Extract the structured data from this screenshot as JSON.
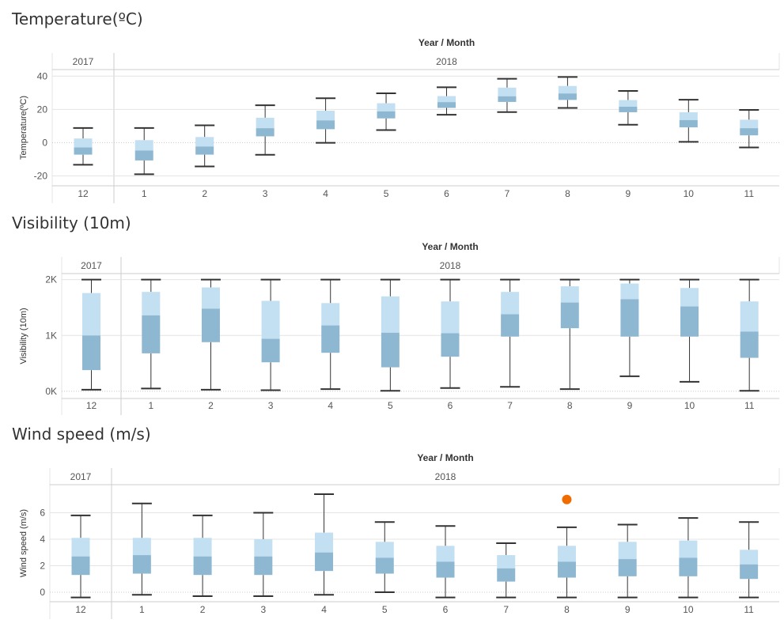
{
  "colors": {
    "upper_box": "#c3dff2",
    "lower_box": "#8eb8d2",
    "whisker": "#333333",
    "grid": "#e4e4e4",
    "outlier": "#f06c00",
    "header_text": "#555555"
  },
  "chart_data": [
    {
      "type": "box",
      "title": "Temperature(ºC)",
      "header": "Year / Month",
      "ylabel": "Temperature(ºC)",
      "years": [
        {
          "label": "2017",
          "span": 1
        },
        {
          "label": "2018",
          "span": 11
        }
      ],
      "categories": [
        "12",
        "1",
        "2",
        "3",
        "4",
        "5",
        "6",
        "7",
        "8",
        "9",
        "10",
        "11"
      ],
      "yticks": [
        {
          "v": -20,
          "label": "-20"
        },
        {
          "v": 0,
          "label": "0"
        },
        {
          "v": 20,
          "label": "20"
        },
        {
          "v": 40,
          "label": "40"
        }
      ],
      "ylim": [
        -25,
        43
      ],
      "boxes": [
        {
          "min": -13.3,
          "q1": -7.2,
          "median": -2.9,
          "q3": 2.5,
          "max": 8.8
        },
        {
          "min": -19.0,
          "q1": -10.7,
          "median": -4.7,
          "q3": 1.5,
          "max": 8.8
        },
        {
          "min": -14.3,
          "q1": -7.2,
          "median": -2.3,
          "q3": 3.4,
          "max": 10.4
        },
        {
          "min": -7.3,
          "q1": 3.8,
          "median": 8.7,
          "q3": 15.0,
          "max": 22.5
        },
        {
          "min": -0.1,
          "q1": 8.1,
          "median": 13.4,
          "q3": 19.2,
          "max": 26.7
        },
        {
          "min": 7.6,
          "q1": 14.6,
          "median": 18.8,
          "q3": 23.7,
          "max": 29.7
        },
        {
          "min": 16.8,
          "q1": 20.9,
          "median": 24.4,
          "q3": 28.0,
          "max": 33.3
        },
        {
          "min": 18.4,
          "q1": 24.5,
          "median": 27.9,
          "q3": 33.1,
          "max": 38.4
        },
        {
          "min": 20.9,
          "q1": 25.7,
          "median": 29.6,
          "q3": 34.1,
          "max": 39.5
        },
        {
          "min": 10.8,
          "q1": 18.3,
          "median": 21.6,
          "q3": 25.6,
          "max": 31.1
        },
        {
          "min": 0.5,
          "q1": 9.2,
          "median": 13.6,
          "q3": 18.3,
          "max": 25.8
        },
        {
          "min": -2.9,
          "q1": 4.4,
          "median": 8.7,
          "q3": 13.8,
          "max": 19.7
        }
      ],
      "outliers": []
    },
    {
      "type": "box",
      "title": "Visibility (10m)",
      "header": "Year / Month",
      "ylabel": "Visibility (10m)",
      "years": [
        {
          "label": "2017",
          "span": 1
        },
        {
          "label": "2018",
          "span": 11
        }
      ],
      "categories": [
        "12",
        "1",
        "2",
        "3",
        "4",
        "5",
        "6",
        "7",
        "8",
        "9",
        "10",
        "11"
      ],
      "yticks": [
        {
          "v": 0,
          "label": "0K"
        },
        {
          "v": 1000,
          "label": "1K"
        },
        {
          "v": 2000,
          "label": "2K"
        }
      ],
      "ylim": [
        -100,
        2080
      ],
      "boxes": [
        {
          "min": 30,
          "q1": 380,
          "median": 1000,
          "q3": 1760,
          "max": 2000
        },
        {
          "min": 50,
          "q1": 680,
          "median": 1360,
          "q3": 1780,
          "max": 2000
        },
        {
          "min": 30,
          "q1": 880,
          "median": 1480,
          "q3": 1860,
          "max": 2000
        },
        {
          "min": 20,
          "q1": 520,
          "median": 940,
          "q3": 1620,
          "max": 2000
        },
        {
          "min": 40,
          "q1": 690,
          "median": 1180,
          "q3": 1580,
          "max": 2000
        },
        {
          "min": 10,
          "q1": 430,
          "median": 1050,
          "q3": 1700,
          "max": 2000
        },
        {
          "min": 60,
          "q1": 620,
          "median": 1040,
          "q3": 1610,
          "max": 2000
        },
        {
          "min": 80,
          "q1": 980,
          "median": 1380,
          "q3": 1780,
          "max": 2000
        },
        {
          "min": 40,
          "q1": 1130,
          "median": 1590,
          "q3": 1880,
          "max": 2000
        },
        {
          "min": 270,
          "q1": 980,
          "median": 1650,
          "q3": 1930,
          "max": 2000
        },
        {
          "min": 170,
          "q1": 980,
          "median": 1520,
          "q3": 1850,
          "max": 2000
        },
        {
          "min": 10,
          "q1": 600,
          "median": 1070,
          "q3": 1610,
          "max": 2000
        }
      ],
      "outliers": []
    },
    {
      "type": "box",
      "title": "Wind speed (m/s)",
      "header": "Year / Month",
      "ylabel": "Wind speed (m/s)",
      "years": [
        {
          "label": "2017",
          "span": 1
        },
        {
          "label": "2018",
          "span": 11
        }
      ],
      "categories": [
        "12",
        "1",
        "2",
        "3",
        "4",
        "5",
        "6",
        "7",
        "8",
        "9",
        "10",
        "11"
      ],
      "yticks": [
        {
          "v": 0,
          "label": "0"
        },
        {
          "v": 2,
          "label": "2"
        },
        {
          "v": 4,
          "label": "4"
        },
        {
          "v": 6,
          "label": "6"
        }
      ],
      "ylim": [
        -0.6,
        8.0
      ],
      "boxes": [
        {
          "min": -0.4,
          "q1": 1.3,
          "median": 2.7,
          "q3": 4.1,
          "max": 5.8
        },
        {
          "min": -0.2,
          "q1": 1.4,
          "median": 2.8,
          "q3": 4.1,
          "max": 6.7
        },
        {
          "min": -0.3,
          "q1": 1.3,
          "median": 2.7,
          "q3": 4.1,
          "max": 5.8
        },
        {
          "min": -0.3,
          "q1": 1.3,
          "median": 2.7,
          "q3": 4.0,
          "max": 6.0
        },
        {
          "min": -0.2,
          "q1": 1.6,
          "median": 3.0,
          "q3": 4.5,
          "max": 7.4
        },
        {
          "min": 0.0,
          "q1": 1.4,
          "median": 2.6,
          "q3": 3.8,
          "max": 5.3
        },
        {
          "min": -0.4,
          "q1": 1.1,
          "median": 2.3,
          "q3": 3.5,
          "max": 5.0
        },
        {
          "min": -0.4,
          "q1": 0.8,
          "median": 1.8,
          "q3": 2.8,
          "max": 3.7
        },
        {
          "min": -0.4,
          "q1": 1.1,
          "median": 2.3,
          "q3": 3.5,
          "max": 4.9
        },
        {
          "min": -0.4,
          "q1": 1.2,
          "median": 2.5,
          "q3": 3.8,
          "max": 5.1
        },
        {
          "min": -0.4,
          "q1": 1.2,
          "median": 2.6,
          "q3": 3.9,
          "max": 5.6
        },
        {
          "min": -0.4,
          "q1": 1.0,
          "median": 2.1,
          "q3": 3.2,
          "max": 5.3
        }
      ],
      "outliers": [
        {
          "category_index": 8,
          "value": 7.0
        }
      ]
    }
  ]
}
